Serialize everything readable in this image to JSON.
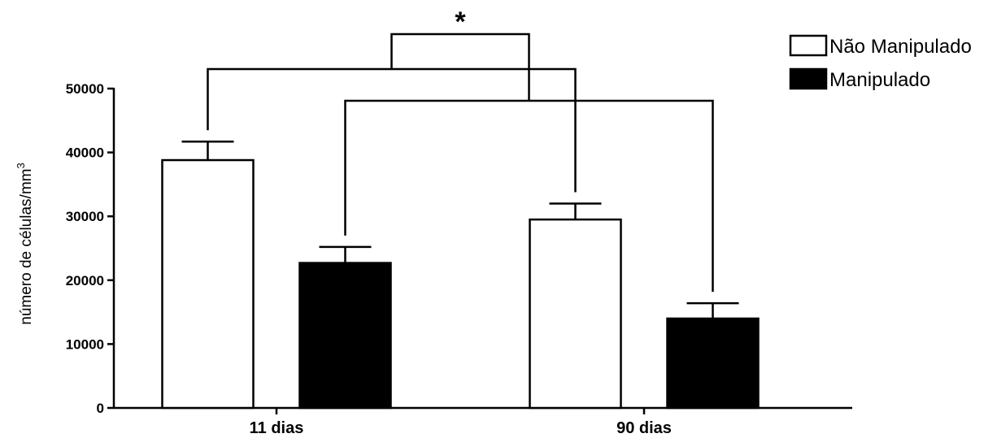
{
  "chart_data": {
    "type": "bar",
    "categories": [
      "11 dias",
      "90 dias"
    ],
    "series": [
      {
        "name": "Não Manipulado",
        "values": [
          38800,
          29500
        ],
        "errors": [
          2900,
          2500
        ],
        "fill": "#ffffff",
        "stroke": "#000000"
      },
      {
        "name": "Manipulado",
        "values": [
          22700,
          14000
        ],
        "errors": [
          2500,
          2400
        ],
        "fill": "#000000",
        "stroke": "#000000"
      }
    ],
    "ylabel": "número de células/mm",
    "ylabel_superscript": "3",
    "ylim": [
      0,
      50000
    ],
    "yticks": [
      0,
      10000,
      20000,
      30000,
      40000,
      50000
    ],
    "grid": false,
    "legend_position": "top-right",
    "significance": {
      "label": "*",
      "comparisons": [
        {
          "series": 0,
          "from_category": 0,
          "to_category": 1
        },
        {
          "series": 1,
          "from_category": 0,
          "to_category": 1
        }
      ]
    }
  }
}
